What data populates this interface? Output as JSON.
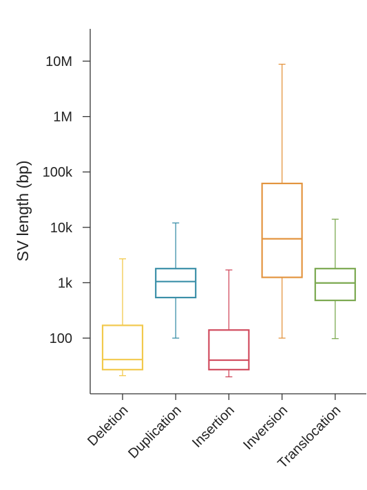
{
  "chart_data": {
    "type": "box",
    "title": "",
    "xlabel": "",
    "ylabel": "SV length (bp)",
    "yscale": "log",
    "ylim": [
      8,
      50000000
    ],
    "grid": false,
    "y_ticks": [
      {
        "value": 100,
        "label": "100"
      },
      {
        "value": 1000,
        "label": "1k"
      },
      {
        "value": 10000,
        "label": "10k"
      },
      {
        "value": 100000,
        "label": "100k"
      },
      {
        "value": 1000000,
        "label": "1M"
      },
      {
        "value": 10000000,
        "label": "10M"
      }
    ],
    "categories": [
      "Deletion",
      "Duplication",
      "Insertion",
      "Inversion",
      "Translocation"
    ],
    "series": [
      {
        "category": "Deletion",
        "color": "#f2c94c",
        "whisker_low": 21,
        "q1": 27,
        "median": 41,
        "q3": 170,
        "whisker_high": 2700
      },
      {
        "category": "Duplication",
        "color": "#3a8fa8",
        "whisker_low": 100,
        "q1": 540,
        "median": 1050,
        "q3": 1800,
        "whisker_high": 12000
      },
      {
        "category": "Insertion",
        "color": "#d14b5e",
        "whisker_low": 20,
        "q1": 27,
        "median": 40,
        "q3": 140,
        "whisker_high": 1700
      },
      {
        "category": "Inversion",
        "color": "#e3943f",
        "whisker_low": 100,
        "q1": 1250,
        "median": 6200,
        "q3": 62000,
        "whisker_high": 8800000
      },
      {
        "category": "Translocation",
        "color": "#7aa84f",
        "whisker_low": 98,
        "q1": 480,
        "median": 990,
        "q3": 1800,
        "whisker_high": 14000
      }
    ]
  }
}
